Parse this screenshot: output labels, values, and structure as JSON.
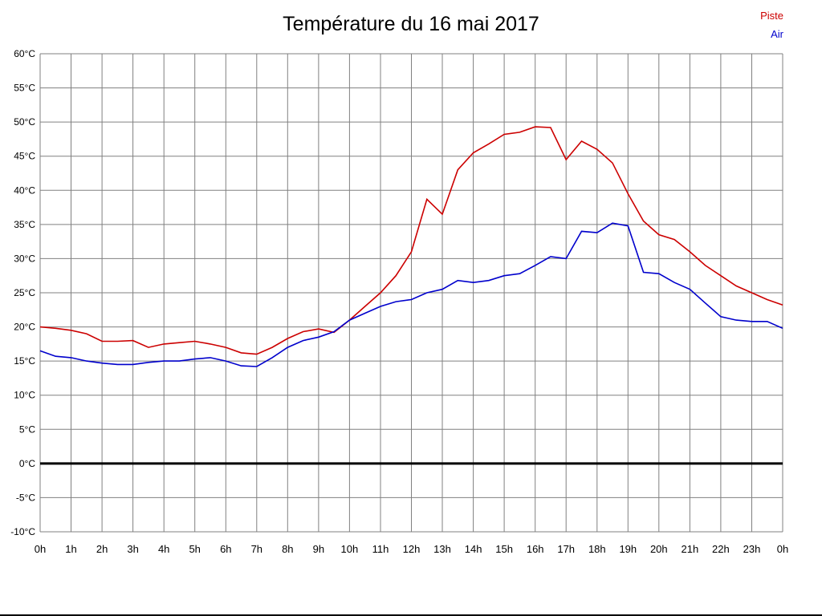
{
  "chart_data": {
    "type": "line",
    "title": "Température du 16 mai 2017",
    "xlabel": "",
    "ylabel": "",
    "xlim": [
      0,
      24
    ],
    "ylim": [
      -10,
      60
    ],
    "x_step": 1,
    "y_step": 5,
    "grid": true,
    "grid_color": "#808080",
    "zero_line_color": "#000000",
    "legend_position": "top-right",
    "x_tick_labels": [
      "0h",
      "1h",
      "2h",
      "3h",
      "4h",
      "5h",
      "6h",
      "7h",
      "8h",
      "9h",
      "10h",
      "11h",
      "12h",
      "13h",
      "14h",
      "15h",
      "16h",
      "17h",
      "18h",
      "19h",
      "20h",
      "21h",
      "22h",
      "23h",
      "0h"
    ],
    "y_tick_labels": [
      "60°C",
      "55°C",
      "50°C",
      "45°C",
      "40°C",
      "35°C",
      "30°C",
      "25°C",
      "20°C",
      "15°C",
      "10°C",
      "5°C",
      "0°C",
      "-5°C",
      "-10°C"
    ],
    "x": [
      0,
      0.5,
      1,
      1.5,
      2,
      2.5,
      3,
      3.5,
      4,
      4.5,
      5,
      5.5,
      6,
      6.5,
      7,
      7.5,
      8,
      8.5,
      9,
      9.5,
      10,
      10.5,
      11,
      11.5,
      12,
      12.5,
      13,
      13.5,
      14,
      14.5,
      15,
      15.5,
      16,
      16.5,
      17,
      17.5,
      18,
      18.5,
      19,
      19.5,
      20,
      20.5,
      21,
      21.5,
      22,
      22.5,
      23,
      23.5,
      24
    ],
    "series": [
      {
        "name": "Piste",
        "color": "#cc0000",
        "values": [
          20.0,
          19.8,
          19.5,
          19.0,
          17.9,
          17.9,
          18.0,
          17.0,
          17.5,
          17.7,
          17.9,
          17.5,
          17.0,
          16.2,
          16.0,
          17.0,
          18.3,
          19.3,
          19.7,
          19.2,
          21.0,
          23.0,
          25.0,
          27.5,
          31.0,
          38.7,
          36.5,
          43.0,
          45.5,
          46.8,
          48.2,
          48.5,
          49.3,
          49.2,
          44.5,
          47.2,
          46.0,
          44.0,
          39.5,
          35.5,
          33.5,
          32.8,
          31.0,
          29.0,
          27.5,
          26.0,
          25.0,
          24.0,
          23.2
        ]
      },
      {
        "name": "Air",
        "color": "#0000cc",
        "values": [
          16.5,
          15.7,
          15.5,
          15.0,
          14.7,
          14.5,
          14.5,
          14.8,
          15.0,
          15.0,
          15.3,
          15.5,
          15.0,
          14.3,
          14.2,
          15.5,
          17.0,
          18.0,
          18.5,
          19.3,
          21.0,
          22.0,
          23.0,
          23.7,
          24.0,
          25.0,
          25.5,
          26.8,
          26.5,
          26.8,
          27.5,
          27.8,
          29.0,
          30.3,
          30.0,
          34.0,
          33.8,
          35.2,
          34.8,
          28.0,
          27.8,
          26.5,
          25.5,
          23.5,
          21.5,
          21.0,
          20.8,
          20.8,
          19.8
        ]
      }
    ]
  }
}
